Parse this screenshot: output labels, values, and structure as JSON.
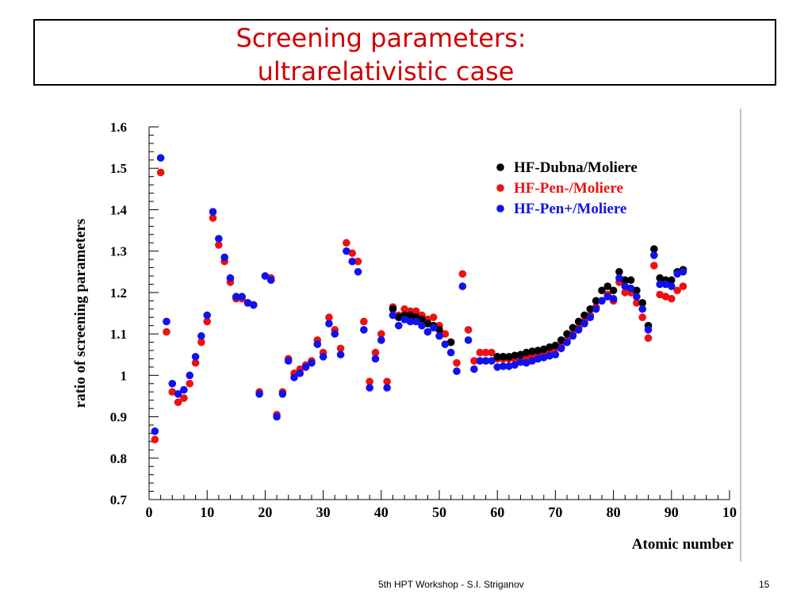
{
  "slide": {
    "title_line1": "Screening parameters:",
    "title_line2": "ultrarelativistic case",
    "footer": "5th HPT Workshop  -  S.I. Striganov",
    "page_number": "15"
  },
  "chart_data": {
    "type": "scatter",
    "title": "",
    "xlabel": "Atomic number",
    "ylabel": "ratio of screening parameters",
    "xlim": [
      0,
      100
    ],
    "ylim": [
      0.7,
      1.6
    ],
    "xticks": [
      "0",
      "10",
      "20",
      "30",
      "40",
      "50",
      "60",
      "70",
      "80",
      "90",
      "10"
    ],
    "yticks": [
      "0.7",
      "0.8",
      "0.9",
      "1",
      "1.1",
      "1.2",
      "1.3",
      "1.4",
      "1.5",
      "1.6"
    ],
    "grid": false,
    "legend_position": "top-right",
    "series": [
      {
        "name": "HF-Dubna/Moliere",
        "color": "#000000",
        "points": [
          [
            42,
            1.16
          ],
          [
            43,
            1.14
          ],
          [
            44,
            1.145
          ],
          [
            45,
            1.145
          ],
          [
            46,
            1.14
          ],
          [
            47,
            1.135
          ],
          [
            48,
            1.125
          ],
          [
            49,
            1.12
          ],
          [
            50,
            1.11
          ],
          [
            52,
            1.08
          ],
          [
            60,
            1.045
          ],
          [
            61,
            1.045
          ],
          [
            62,
            1.045
          ],
          [
            63,
            1.048
          ],
          [
            64,
            1.05
          ],
          [
            65,
            1.055
          ],
          [
            66,
            1.058
          ],
          [
            67,
            1.06
          ],
          [
            68,
            1.063
          ],
          [
            69,
            1.068
          ],
          [
            70,
            1.072
          ],
          [
            71,
            1.085
          ],
          [
            72,
            1.1
          ],
          [
            73,
            1.115
          ],
          [
            74,
            1.13
          ],
          [
            75,
            1.145
          ],
          [
            76,
            1.16
          ],
          [
            77,
            1.18
          ],
          [
            78,
            1.205
          ],
          [
            79,
            1.215
          ],
          [
            80,
            1.205
          ],
          [
            81,
            1.25
          ],
          [
            82,
            1.23
          ],
          [
            83,
            1.23
          ],
          [
            84,
            1.205
          ],
          [
            85,
            1.175
          ],
          [
            86,
            1.12
          ],
          [
            87,
            1.305
          ],
          [
            88,
            1.235
          ],
          [
            89,
            1.23
          ],
          [
            90,
            1.23
          ],
          [
            91,
            1.25
          ],
          [
            92,
            1.255
          ]
        ]
      },
      {
        "name": "HF-Pen-/Moliere",
        "color": "#ee1111",
        "points": [
          [
            1,
            0.845
          ],
          [
            2,
            1.49
          ],
          [
            3,
            1.105
          ],
          [
            4,
            0.96
          ],
          [
            5,
            0.935
          ],
          [
            6,
            0.945
          ],
          [
            7,
            0.98
          ],
          [
            8,
            1.03
          ],
          [
            9,
            1.08
          ],
          [
            10,
            1.13
          ],
          [
            11,
            1.38
          ],
          [
            12,
            1.315
          ],
          [
            13,
            1.275
          ],
          [
            14,
            1.225
          ],
          [
            15,
            1.185
          ],
          [
            16,
            1.185
          ],
          [
            17,
            1.175
          ],
          [
            18,
            1.17
          ],
          [
            19,
            0.96
          ],
          [
            20,
            1.24
          ],
          [
            21,
            1.235
          ],
          [
            22,
            0.905
          ],
          [
            23,
            0.96
          ],
          [
            24,
            1.04
          ],
          [
            25,
            1.005
          ],
          [
            26,
            1.015
          ],
          [
            27,
            1.025
          ],
          [
            28,
            1.035
          ],
          [
            29,
            1.085
          ],
          [
            30,
            1.055
          ],
          [
            31,
            1.14
          ],
          [
            32,
            1.11
          ],
          [
            33,
            1.065
          ],
          [
            34,
            1.32
          ],
          [
            35,
            1.295
          ],
          [
            36,
            1.275
          ],
          [
            37,
            1.13
          ],
          [
            38,
            0.985
          ],
          [
            39,
            1.055
          ],
          [
            40,
            1.1
          ],
          [
            41,
            0.985
          ],
          [
            42,
            1.165
          ],
          [
            43,
            1.145
          ],
          [
            44,
            1.16
          ],
          [
            45,
            1.155
          ],
          [
            46,
            1.155
          ],
          [
            47,
            1.145
          ],
          [
            48,
            1.135
          ],
          [
            49,
            1.14
          ],
          [
            50,
            1.12
          ],
          [
            51,
            1.1
          ],
          [
            52,
            1.08
          ],
          [
            53,
            1.03
          ],
          [
            54,
            1.245
          ],
          [
            55,
            1.11
          ],
          [
            56,
            1.035
          ],
          [
            57,
            1.055
          ],
          [
            58,
            1.055
          ],
          [
            59,
            1.055
          ],
          [
            60,
            1.04
          ],
          [
            61,
            1.04
          ],
          [
            62,
            1.04
          ],
          [
            63,
            1.04
          ],
          [
            64,
            1.045
          ],
          [
            65,
            1.04
          ],
          [
            66,
            1.045
          ],
          [
            67,
            1.05
          ],
          [
            68,
            1.055
          ],
          [
            69,
            1.06
          ],
          [
            70,
            1.065
          ],
          [
            71,
            1.07
          ],
          [
            72,
            1.085
          ],
          [
            73,
            1.1
          ],
          [
            74,
            1.115
          ],
          [
            75,
            1.13
          ],
          [
            76,
            1.145
          ],
          [
            77,
            1.165
          ],
          [
            78,
            1.18
          ],
          [
            79,
            1.195
          ],
          [
            80,
            1.18
          ],
          [
            81,
            1.225
          ],
          [
            82,
            1.2
          ],
          [
            83,
            1.2
          ],
          [
            84,
            1.175
          ],
          [
            85,
            1.14
          ],
          [
            86,
            1.09
          ],
          [
            87,
            1.265
          ],
          [
            88,
            1.195
          ],
          [
            89,
            1.19
          ],
          [
            90,
            1.185
          ],
          [
            91,
            1.205
          ],
          [
            92,
            1.215
          ]
        ]
      },
      {
        "name": "HF-Pen+/Moliere",
        "color": "#1111ee",
        "points": [
          [
            1,
            0.865
          ],
          [
            2,
            1.525
          ],
          [
            3,
            1.13
          ],
          [
            4,
            0.98
          ],
          [
            5,
            0.955
          ],
          [
            6,
            0.965
          ],
          [
            7,
            1.0
          ],
          [
            8,
            1.045
          ],
          [
            9,
            1.095
          ],
          [
            10,
            1.145
          ],
          [
            11,
            1.395
          ],
          [
            12,
            1.33
          ],
          [
            13,
            1.285
          ],
          [
            14,
            1.235
          ],
          [
            15,
            1.19
          ],
          [
            16,
            1.19
          ],
          [
            17,
            1.175
          ],
          [
            18,
            1.17
          ],
          [
            19,
            0.955
          ],
          [
            20,
            1.24
          ],
          [
            21,
            1.23
          ],
          [
            22,
            0.9
          ],
          [
            23,
            0.955
          ],
          [
            24,
            1.035
          ],
          [
            25,
            0.995
          ],
          [
            26,
            1.005
          ],
          [
            27,
            1.02
          ],
          [
            28,
            1.03
          ],
          [
            29,
            1.075
          ],
          [
            30,
            1.045
          ],
          [
            31,
            1.125
          ],
          [
            32,
            1.1
          ],
          [
            33,
            1.05
          ],
          [
            34,
            1.3
          ],
          [
            35,
            1.275
          ],
          [
            36,
            1.25
          ],
          [
            37,
            1.11
          ],
          [
            38,
            0.97
          ],
          [
            39,
            1.04
          ],
          [
            40,
            1.085
          ],
          [
            41,
            0.97
          ],
          [
            42,
            1.145
          ],
          [
            43,
            1.12
          ],
          [
            44,
            1.135
          ],
          [
            45,
            1.13
          ],
          [
            46,
            1.13
          ],
          [
            47,
            1.12
          ],
          [
            48,
            1.105
          ],
          [
            49,
            1.115
          ],
          [
            50,
            1.095
          ],
          [
            51,
            1.075
          ],
          [
            52,
            1.055
          ],
          [
            53,
            1.01
          ],
          [
            54,
            1.215
          ],
          [
            55,
            1.085
          ],
          [
            56,
            1.015
          ],
          [
            57,
            1.035
          ],
          [
            58,
            1.035
          ],
          [
            59,
            1.035
          ],
          [
            60,
            1.02
          ],
          [
            61,
            1.022
          ],
          [
            62,
            1.022
          ],
          [
            63,
            1.025
          ],
          [
            64,
            1.032
          ],
          [
            65,
            1.03
          ],
          [
            66,
            1.035
          ],
          [
            67,
            1.04
          ],
          [
            68,
            1.043
          ],
          [
            69,
            1.047
          ],
          [
            70,
            1.05
          ],
          [
            71,
            1.065
          ],
          [
            72,
            1.08
          ],
          [
            73,
            1.095
          ],
          [
            74,
            1.11
          ],
          [
            75,
            1.125
          ],
          [
            76,
            1.14
          ],
          [
            77,
            1.16
          ],
          [
            78,
            1.18
          ],
          [
            79,
            1.19
          ],
          [
            80,
            1.185
          ],
          [
            81,
            1.235
          ],
          [
            82,
            1.215
          ],
          [
            83,
            1.21
          ],
          [
            84,
            1.19
          ],
          [
            85,
            1.16
          ],
          [
            86,
            1.11
          ],
          [
            87,
            1.29
          ],
          [
            88,
            1.22
          ],
          [
            89,
            1.22
          ],
          [
            90,
            1.215
          ],
          [
            91,
            1.245
          ],
          [
            92,
            1.25
          ]
        ]
      }
    ]
  }
}
